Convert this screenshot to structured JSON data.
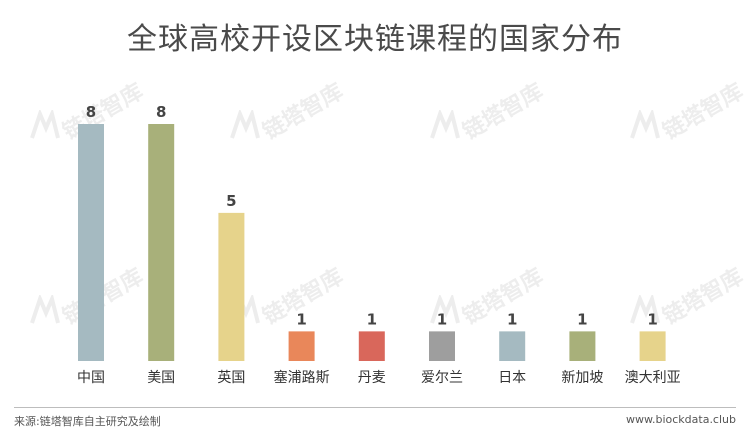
{
  "chart_data": {
    "type": "bar",
    "title": "全球高校开设区块链课程的国家分布",
    "categories": [
      "中国",
      "美国",
      "英国",
      "塞浦路斯",
      "丹麦",
      "爱尔兰",
      "日本",
      "新加坡",
      "澳大利亚"
    ],
    "values": [
      8,
      8,
      5,
      1,
      1,
      1,
      1,
      1,
      1
    ],
    "colors": [
      "#a5bac1",
      "#a8b07a",
      "#e6d38b",
      "#e9875a",
      "#d9675b",
      "#9e9e9e",
      "#a5bac1",
      "#a8b07a",
      "#e6d38b"
    ],
    "ylim": [
      0,
      8
    ],
    "grid": false,
    "xlabel": "",
    "ylabel": ""
  },
  "watermark": "链塔智库",
  "footer": {
    "source": "来源:链塔智库自主研究及绘制",
    "site": "www.biockdata.club"
  }
}
